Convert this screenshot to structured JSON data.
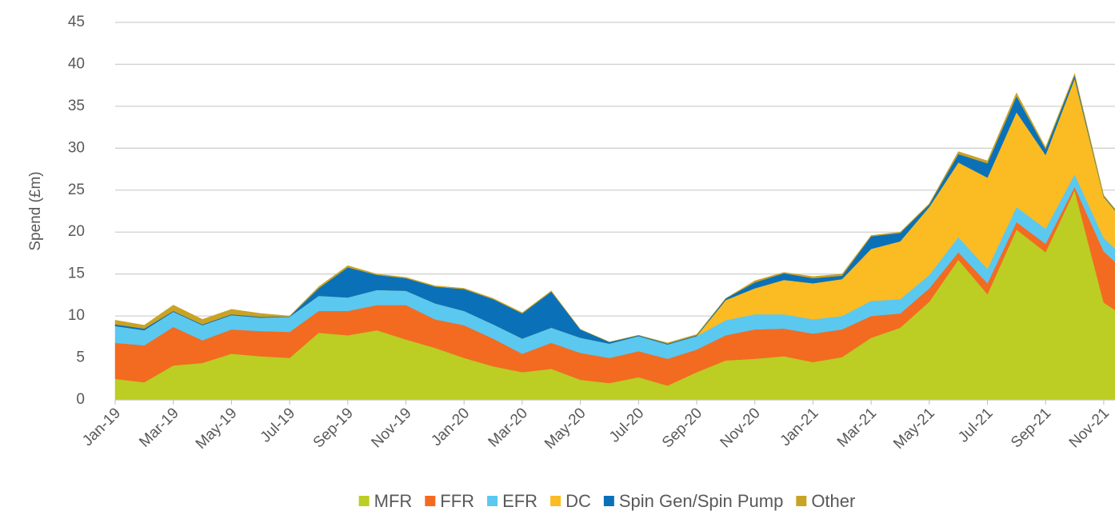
{
  "chart_data": {
    "type": "stacked_area",
    "y_axis_label": "Spend (£m)",
    "categories": [
      "Jan-19",
      null,
      "Mar-19",
      null,
      "May-19",
      null,
      "Jul-19",
      null,
      "Sep-19",
      null,
      "Nov-19",
      null,
      "Jan-20",
      null,
      "Mar-20",
      null,
      "May-20",
      null,
      "Jul-20",
      null,
      "Sep-20",
      null,
      "Nov-20",
      null,
      "Jan-21",
      null,
      "Mar-21",
      null,
      "May-21",
      null,
      "Jul-21",
      null,
      "Sep-21",
      null,
      "Nov-21",
      null
    ],
    "series": [
      {
        "name": "MFR",
        "color": "#bccd23",
        "values": [
          2.5,
          2.1,
          4.1,
          4.4,
          5.5,
          5.2,
          5.0,
          8.0,
          7.7,
          8.3,
          7.2,
          6.2,
          5.0,
          4.0,
          3.3,
          3.7,
          2.4,
          2.0,
          2.7,
          1.7,
          3.3,
          4.7,
          4.9,
          5.2,
          4.5,
          5.1,
          7.4,
          8.6,
          11.7,
          16.7,
          12.6,
          20.3,
          17.6,
          25.0,
          11.6,
          9.3
        ]
      },
      {
        "name": "FFR",
        "color": "#f26b21",
        "values": [
          4.3,
          4.4,
          4.6,
          2.7,
          2.9,
          3.0,
          3.1,
          2.6,
          2.9,
          3.0,
          4.1,
          3.4,
          3.9,
          3.3,
          2.2,
          3.1,
          3.2,
          3.0,
          3.1,
          3.2,
          2.7,
          3.0,
          3.5,
          3.3,
          3.4,
          3.3,
          2.6,
          1.7,
          1.6,
          0.9,
          1.3,
          0.9,
          1.0,
          0.4,
          6.1,
          5.2
        ]
      },
      {
        "name": "EFR",
        "color": "#5bc8f0",
        "values": [
          2.0,
          1.8,
          1.8,
          1.8,
          1.7,
          1.6,
          1.8,
          1.8,
          1.6,
          1.8,
          1.7,
          1.9,
          1.7,
          1.7,
          1.8,
          1.8,
          1.8,
          1.7,
          1.8,
          1.7,
          1.6,
          1.8,
          1.8,
          1.7,
          1.7,
          1.6,
          1.8,
          1.7,
          1.6,
          1.8,
          1.7,
          1.8,
          1.8,
          1.5,
          1.6,
          1.6
        ]
      },
      {
        "name": "DC",
        "color": "#fbbb22",
        "values": [
          0,
          0,
          0,
          0,
          0,
          0,
          0,
          0,
          0,
          0,
          0,
          0,
          0,
          0,
          0,
          0,
          0,
          0,
          0,
          0,
          0,
          2.4,
          3.1,
          4.1,
          4.3,
          4.4,
          6.2,
          6.9,
          8.1,
          8.9,
          10.9,
          11.3,
          8.8,
          11.4,
          4.9,
          3.9
        ]
      },
      {
        "name": "Spin Gen/Spin Pump",
        "color": "#0a71b9",
        "values": [
          0.2,
          0.2,
          0.1,
          0.1,
          0.1,
          0.1,
          0.05,
          0.9,
          3.6,
          1.8,
          1.5,
          2.0,
          2.6,
          3.0,
          3.0,
          4.3,
          1.0,
          0.2,
          0.1,
          0.1,
          0.1,
          0.2,
          0.7,
          0.8,
          0.6,
          0.4,
          1.5,
          1.0,
          0.3,
          1.0,
          1.7,
          1.9,
          0.7,
          0.4,
          0.1,
          0.1
        ]
      },
      {
        "name": "Other",
        "color": "#c9a323",
        "values": [
          0.5,
          0.4,
          0.7,
          0.6,
          0.6,
          0.4,
          0.05,
          0.2,
          0.2,
          0.1,
          0.1,
          0.1,
          0.1,
          0.1,
          0.1,
          0.1,
          0,
          0,
          0,
          0.1,
          0.1,
          0,
          0.2,
          0.1,
          0.2,
          0.2,
          0.1,
          0.1,
          0.1,
          0.3,
          0.3,
          0.4,
          0.2,
          0.2,
          0.1,
          0.1
        ]
      }
    ],
    "ylim": [
      0,
      45
    ],
    "yticks": [
      0,
      5,
      10,
      15,
      20,
      25,
      30,
      35,
      40,
      45
    ],
    "grid": true,
    "legend": "bottom"
  }
}
